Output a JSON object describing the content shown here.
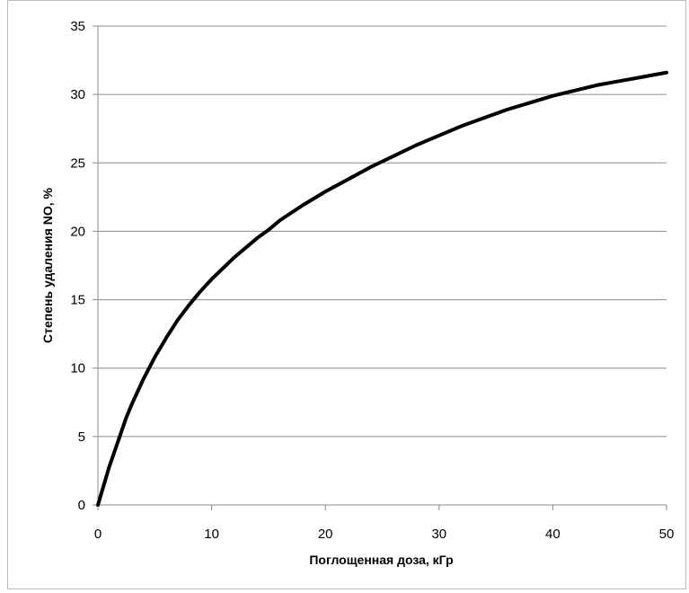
{
  "chart_data": {
    "type": "line",
    "title": "",
    "xlabel": "Поглощенная доза, кГр",
    "ylabel": "Степень удаления NO, %",
    "xlim": [
      0,
      50
    ],
    "ylim": [
      0,
      35
    ],
    "x_ticks": [
      0,
      10,
      20,
      30,
      40,
      50
    ],
    "y_ticks": [
      0,
      5,
      10,
      15,
      20,
      25,
      30,
      35
    ],
    "grid": "horizontal",
    "legend": "none",
    "line_color": "#000000",
    "grid_color": "#8c8c8c",
    "series": [
      {
        "x": [
          0,
          1,
          2,
          2.5,
          3,
          4,
          5,
          6,
          7,
          8,
          9,
          10,
          12,
          14,
          15,
          16,
          18,
          20,
          22,
          24,
          25,
          26,
          28,
          30,
          32,
          34,
          36,
          38,
          40,
          42,
          44,
          46,
          48,
          50
        ],
        "values": [
          0,
          2.8,
          5.2,
          6.4,
          7.4,
          9.2,
          10.8,
          12.2,
          13.5,
          14.6,
          15.6,
          16.5,
          18.1,
          19.5,
          20.1,
          20.8,
          21.9,
          22.9,
          23.8,
          24.7,
          25.1,
          25.5,
          26.3,
          27.0,
          27.7,
          28.3,
          28.9,
          29.4,
          29.9,
          30.3,
          30.7,
          31.0,
          31.3,
          31.6
        ]
      }
    ]
  }
}
